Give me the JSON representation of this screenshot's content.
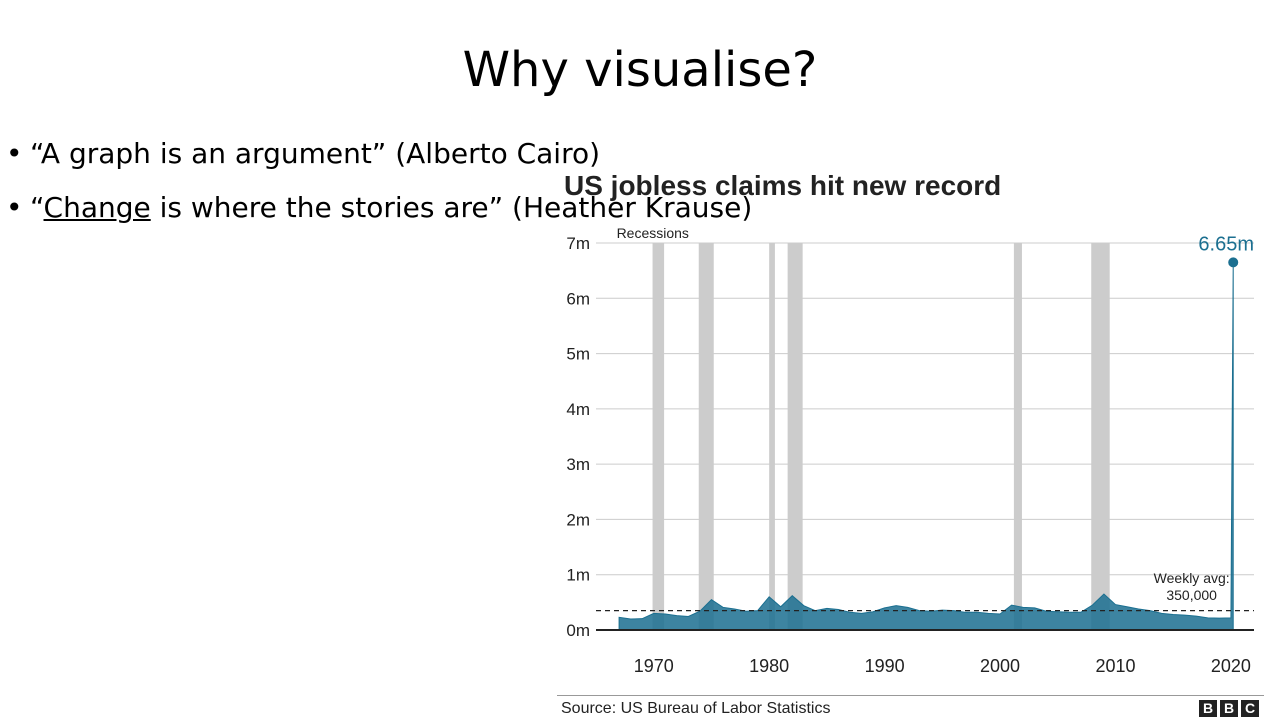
{
  "slide": {
    "title": "Why visualise?",
    "bullets": [
      {
        "pre": "“A graph is an argument” (Alberto Cairo)",
        "underlined": "",
        "post": ""
      },
      {
        "pre": "“",
        "underlined": "Change",
        "post": " is where the stories are” (Heather Krause)"
      }
    ]
  },
  "chart_data": {
    "type": "area",
    "title": "US jobless claims hit new record",
    "ylim": [
      0,
      7000000
    ],
    "xlim": [
      1965,
      2022
    ],
    "y_ticks": [
      {
        "value": 0,
        "label": "0m"
      },
      {
        "value": 1000000,
        "label": "1m"
      },
      {
        "value": 2000000,
        "label": "2m"
      },
      {
        "value": 3000000,
        "label": "3m"
      },
      {
        "value": 4000000,
        "label": "4m"
      },
      {
        "value": 5000000,
        "label": "5m"
      },
      {
        "value": 6000000,
        "label": "6m"
      },
      {
        "value": 7000000,
        "label": "7m"
      }
    ],
    "x_ticks": [
      {
        "value": 1970,
        "label": "1970"
      },
      {
        "value": 1980,
        "label": "1980"
      },
      {
        "value": 1990,
        "label": "1990"
      },
      {
        "value": 2000,
        "label": "2000"
      },
      {
        "value": 2010,
        "label": "2010"
      },
      {
        "value": 2020,
        "label": "2020"
      }
    ],
    "series": [
      {
        "x": [
          1967,
          1968,
          1969,
          1970,
          1971,
          1972,
          1973,
          1974,
          1975,
          1976,
          1977,
          1978,
          1979,
          1980,
          1981,
          1982,
          1983,
          1984,
          1985,
          1986,
          1987,
          1988,
          1989,
          1990,
          1991,
          1992,
          1993,
          1994,
          1995,
          1996,
          1997,
          1998,
          1999,
          2000,
          2001,
          2002,
          2003,
          2004,
          2005,
          2006,
          2007,
          2008,
          2009,
          2010,
          2011,
          2012,
          2013,
          2014,
          2015,
          2016,
          2017,
          2018,
          2019,
          2020,
          2020.2
        ],
        "y": [
          230000,
          200000,
          205000,
          300000,
          290000,
          260000,
          245000,
          340000,
          550000,
          410000,
          380000,
          340000,
          350000,
          600000,
          420000,
          620000,
          440000,
          350000,
          390000,
          370000,
          320000,
          300000,
          330000,
          400000,
          440000,
          410000,
          350000,
          340000,
          360000,
          350000,
          320000,
          320000,
          300000,
          290000,
          450000,
          410000,
          400000,
          340000,
          330000,
          320000,
          320000,
          450000,
          650000,
          460000,
          420000,
          380000,
          350000,
          300000,
          280000,
          270000,
          250000,
          220000,
          215000,
          220000,
          6650000
        ]
      }
    ],
    "peak": {
      "year": 2020.2,
      "value": 6650000,
      "label": "6.65m"
    },
    "average": {
      "value": 350000,
      "label_line1": "Weekly avg:",
      "label_line2": "350,000"
    },
    "recessions_label": "Recessions",
    "recessions": [
      [
        1969.9,
        1970.9
      ],
      [
        1973.9,
        1975.2
      ],
      [
        1980.0,
        1980.5
      ],
      [
        1981.6,
        1982.9
      ],
      [
        2001.2,
        2001.9
      ],
      [
        2007.9,
        2009.5
      ]
    ],
    "colors": {
      "area": "#1b6f90",
      "recession": "#cccccc",
      "grid": "#cccccc",
      "peak": "#1b6f90"
    }
  },
  "source_text": "Source: US Bureau of Labor Statistics",
  "logo_letters": [
    "B",
    "B",
    "C"
  ]
}
